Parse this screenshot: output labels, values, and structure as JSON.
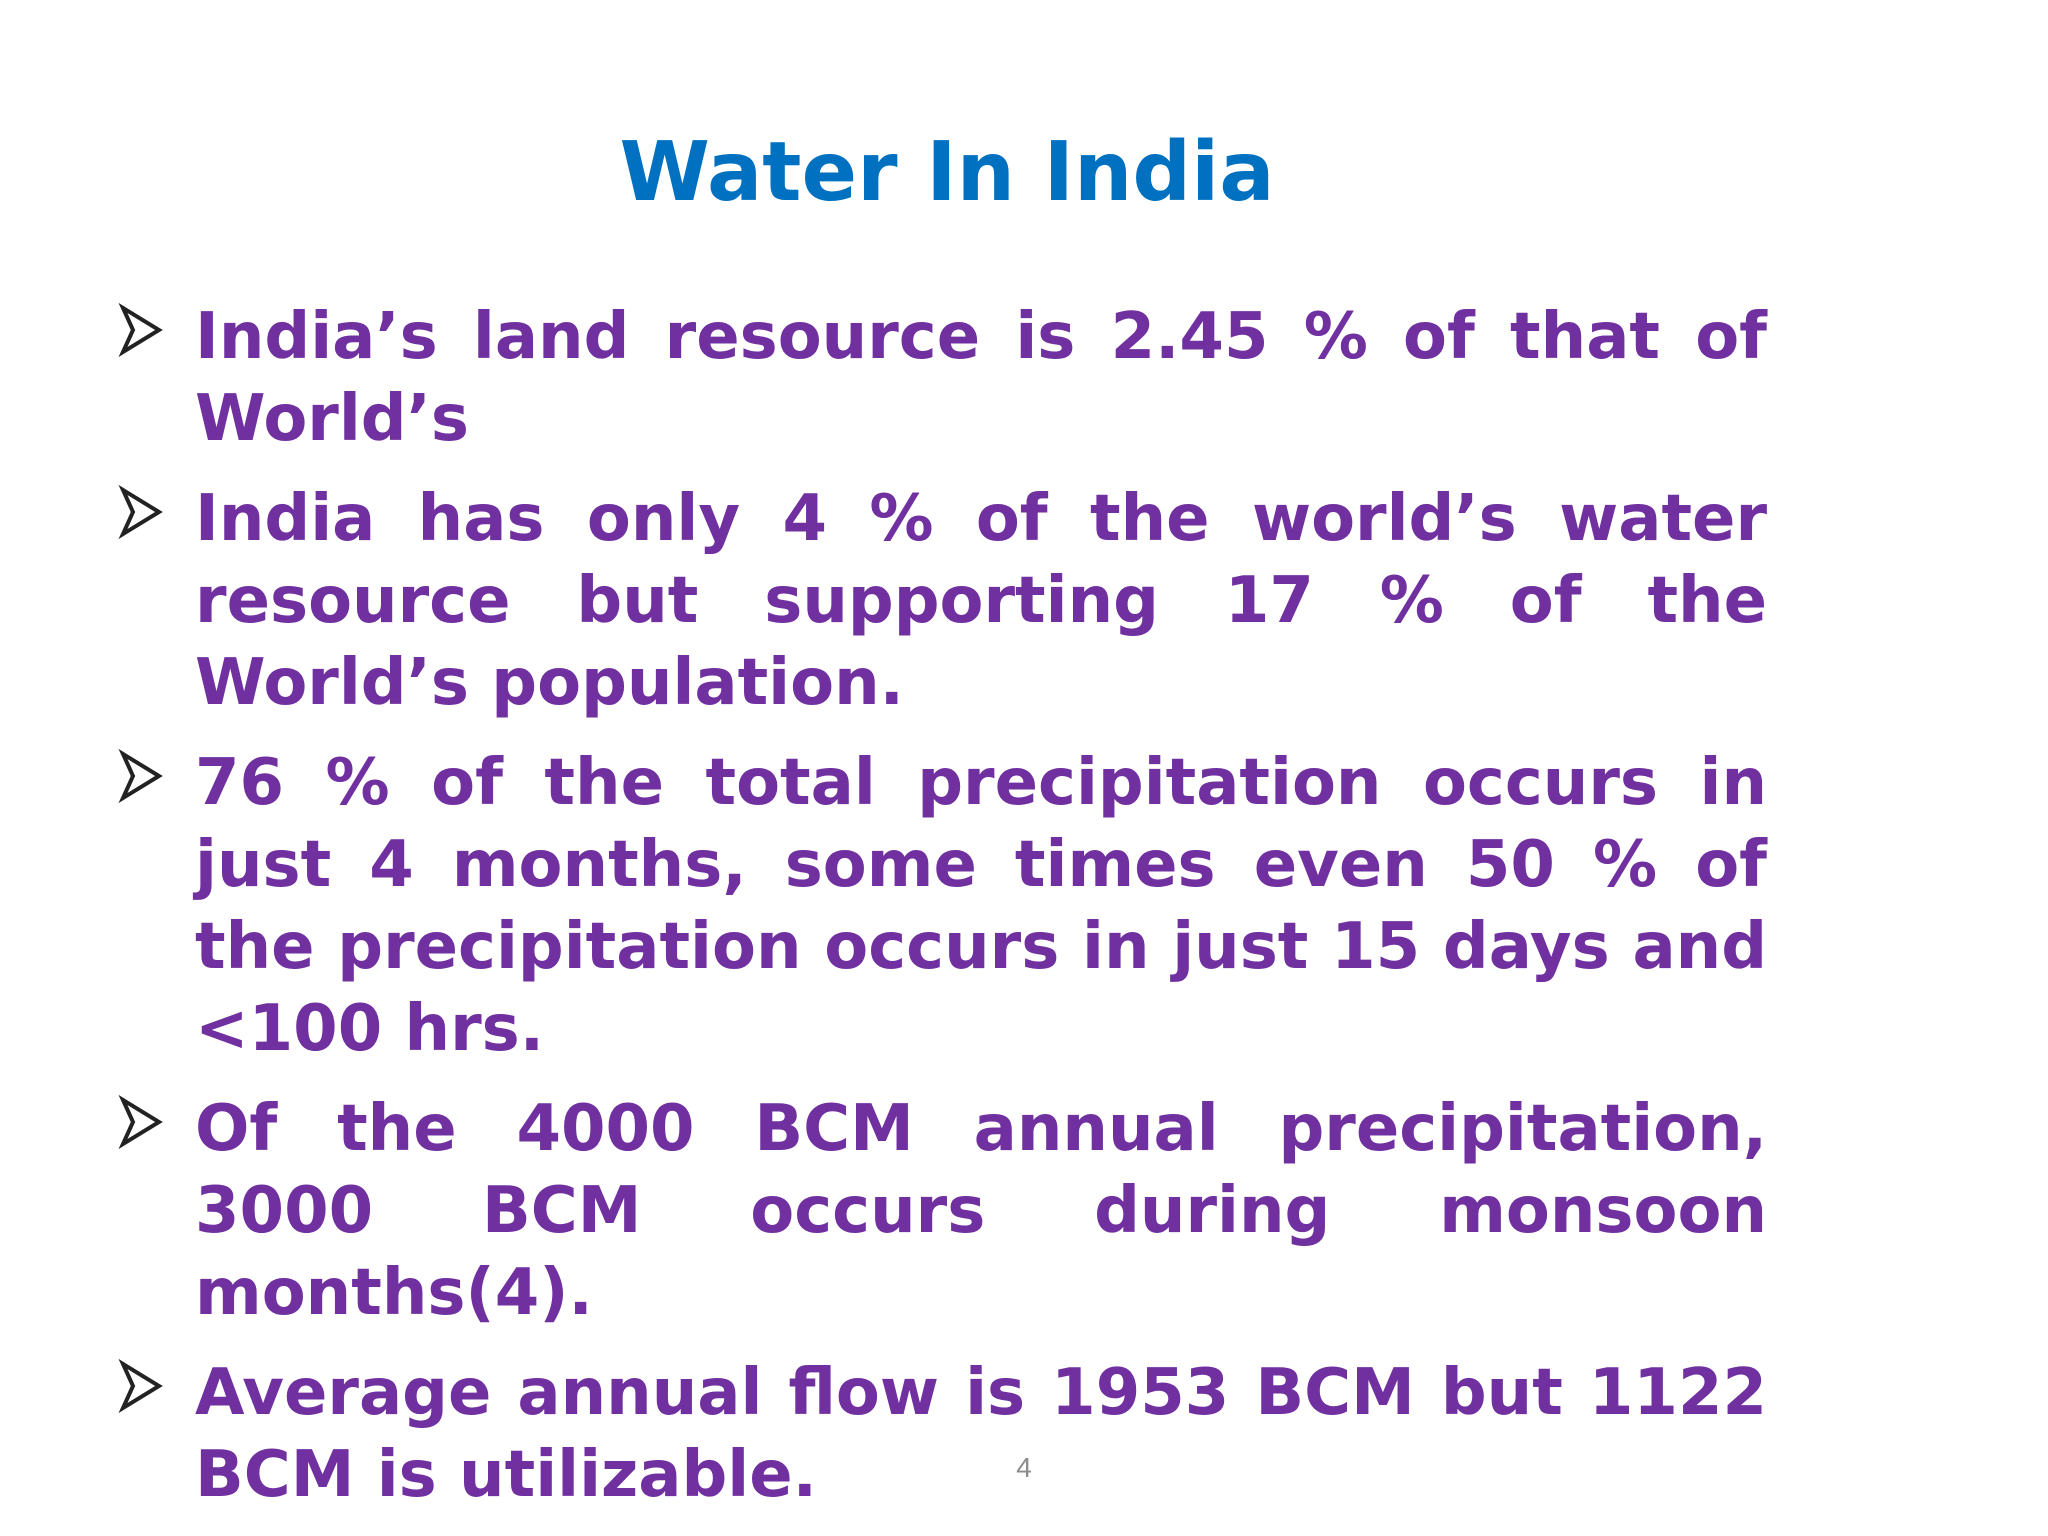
{
  "slide": {
    "title": "Water In India",
    "bullet_icon": "arrowhead-bullet-icon",
    "bullets": [
      "India’s land resource is 2.45 % of that of World’s",
      "India has only 4 % of the world’s water resource  but supporting 17 % of the World’s population.",
      "76 % of the total precipitation occurs in just 4 months, some times even 50 % of the precipitation occurs in  just 15 days and  <100 hrs.",
      "Of the 4000 BCM annual precipitation, 3000 BCM occurs during monsoon months(4).",
      "Average annual flow is 1953 BCM  but 1122 BCM is utilizable."
    ],
    "page_number": "4"
  },
  "colors": {
    "title": "#0070c0",
    "body_text": "#7030a0",
    "page_number": "#8c8c8c",
    "background": "#ffffff"
  }
}
